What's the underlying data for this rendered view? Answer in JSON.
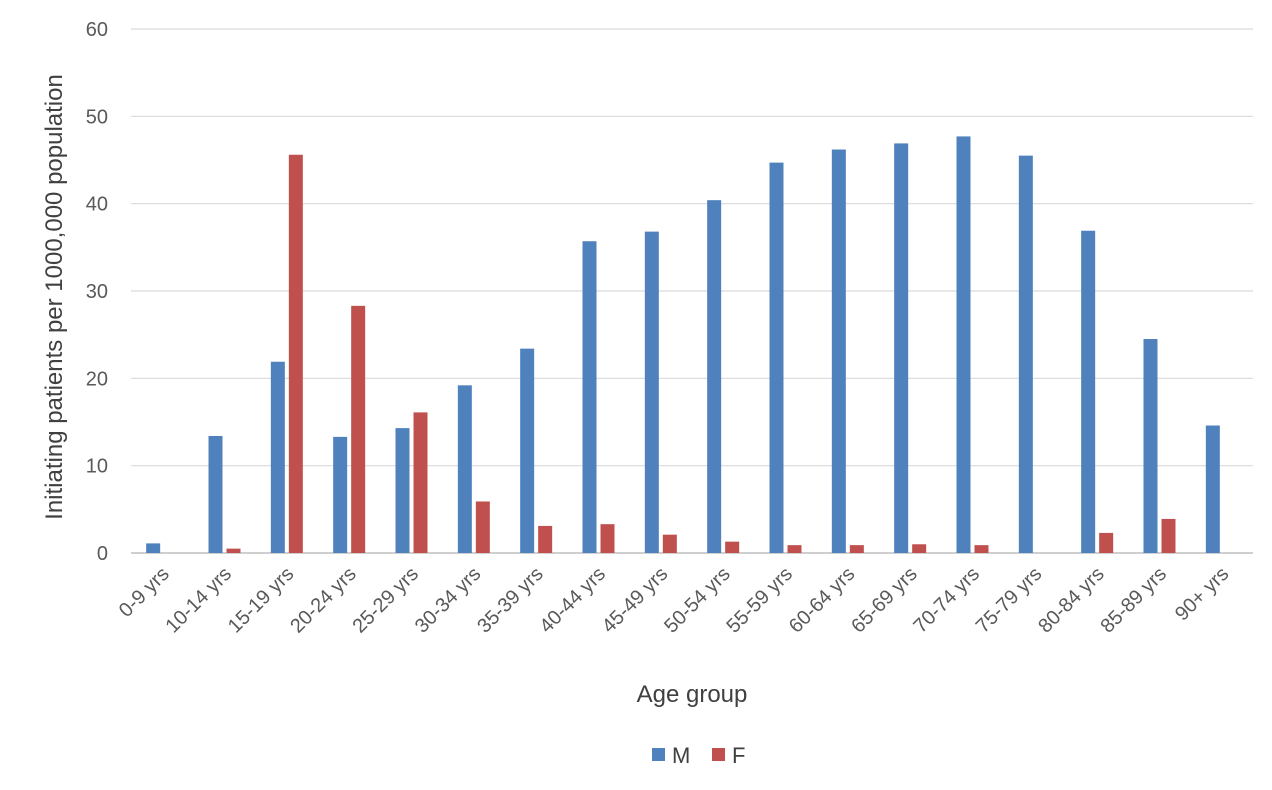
{
  "chart_data": {
    "type": "bar",
    "title": "",
    "xlabel": "Age group",
    "ylabel": "Initiating patients per 1000,000 population",
    "ylim": [
      0,
      60
    ],
    "yticks": [
      "0",
      "10",
      "20",
      "30",
      "40",
      "50",
      "60"
    ],
    "grid": true,
    "legend_position": "bottom",
    "categories": [
      "0-9 yrs",
      "10-14 yrs",
      "15-19 yrs",
      "20-24 yrs",
      "25-29 yrs",
      "30-34 yrs",
      "35-39 yrs",
      "40-44 yrs",
      "45-49 yrs",
      "50-54 yrs",
      "55-59 yrs",
      "60-64 yrs",
      "65-69 yrs",
      "70-74 yrs",
      "75-79 yrs",
      "80-84 yrs",
      "85-89 yrs",
      "90+ yrs"
    ],
    "series": [
      {
        "name": "M",
        "color": "#4f81bd",
        "values": [
          1.1,
          13.4,
          21.9,
          13.3,
          14.3,
          19.2,
          23.4,
          35.7,
          36.8,
          40.4,
          44.7,
          46.2,
          46.9,
          47.7,
          45.5,
          36.9,
          24.5,
          14.6
        ]
      },
      {
        "name": "F",
        "color": "#c0504d",
        "values": [
          0,
          0.5,
          45.6,
          28.3,
          16.1,
          5.9,
          3.1,
          3.3,
          2.1,
          1.3,
          0.9,
          0.9,
          1.0,
          0.9,
          0,
          2.3,
          3.9,
          0
        ]
      }
    ]
  }
}
